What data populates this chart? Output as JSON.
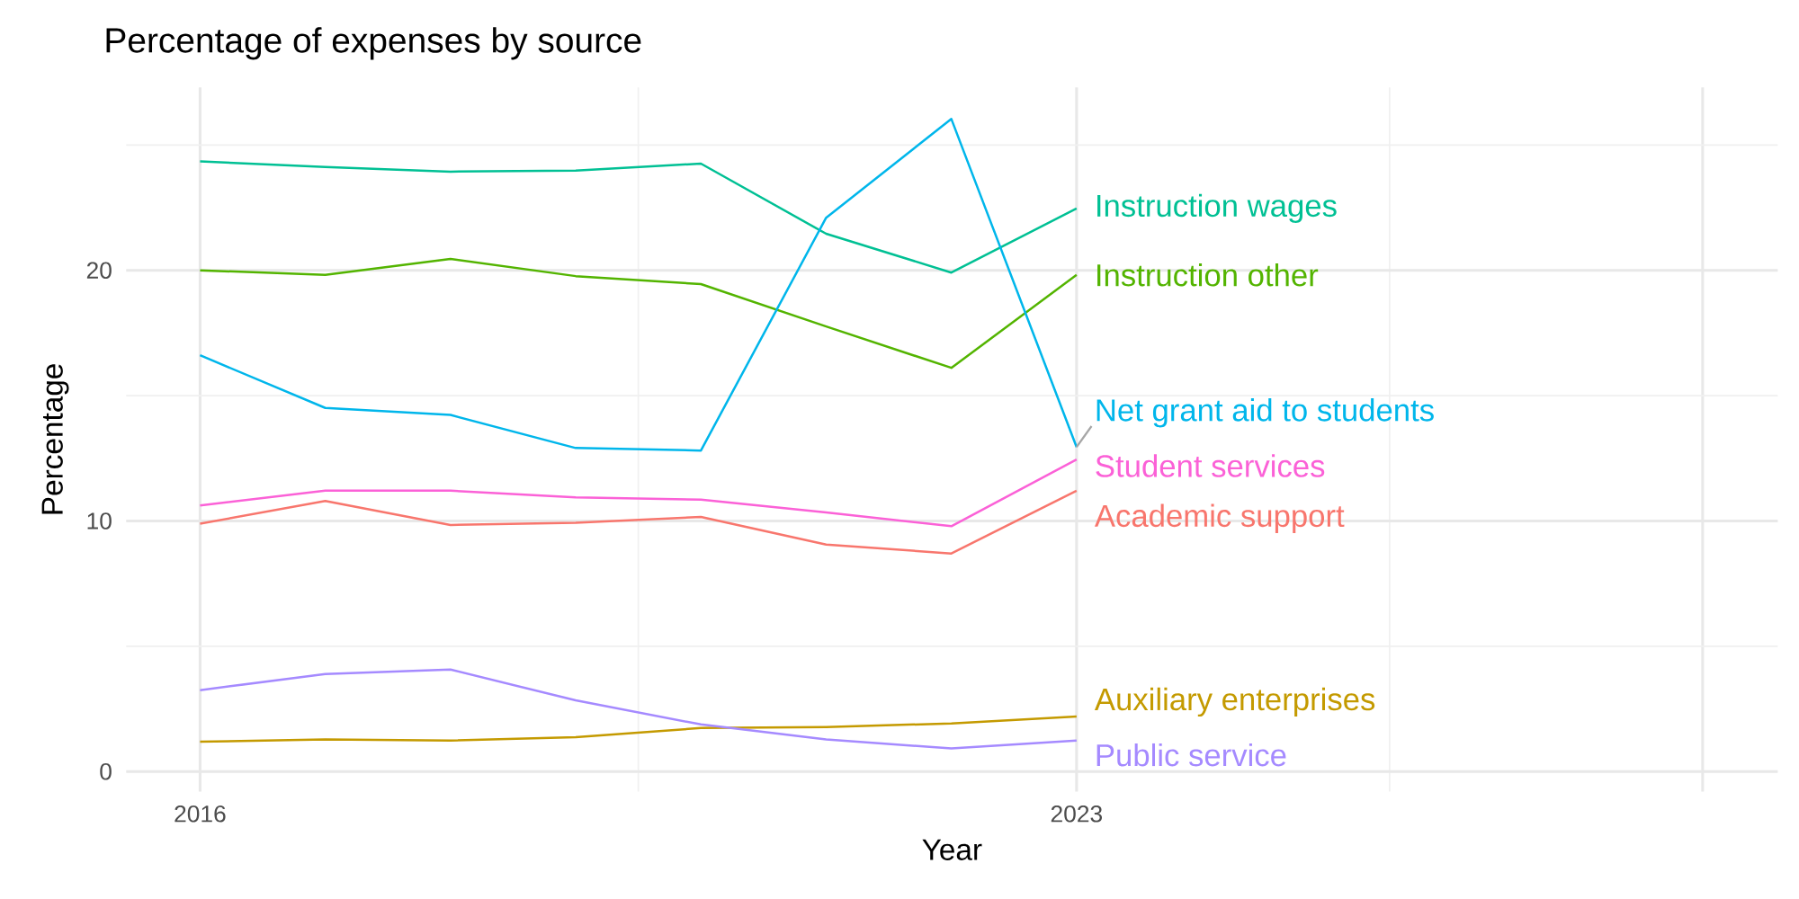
{
  "chart_data": {
    "type": "line",
    "title": "Percentage of expenses by source",
    "xlabel": "Year",
    "ylabel": "Percentage",
    "x": [
      2016,
      2017,
      2018,
      2019,
      2020,
      2021,
      2022,
      2023
    ],
    "xlim": [
      2015.41,
      2028.6
    ],
    "xticks": [
      2016,
      2023,
      {
        "value": 2028,
        "label": null
      }
    ],
    "ylim": [
      -0.8,
      27.3
    ],
    "yticks": [
      0,
      10,
      20
    ],
    "grid": true,
    "legend": false,
    "series": [
      {
        "name": "Academic support",
        "color": "#F8766D",
        "values": [
          9.89,
          10.8,
          9.84,
          9.93,
          10.16,
          9.06,
          8.7,
          11.21
        ]
      },
      {
        "name": "Auxiliary enterprises",
        "color": "#C49A00",
        "values": [
          1.19,
          1.28,
          1.24,
          1.37,
          1.74,
          1.78,
          1.92,
          2.2
        ]
      },
      {
        "name": "Instruction other",
        "color": "#53B400",
        "values": [
          20.0,
          19.82,
          20.46,
          19.77,
          19.45,
          17.76,
          16.11,
          19.82
        ]
      },
      {
        "name": "Instruction wages",
        "color": "#00C094",
        "values": [
          24.35,
          24.12,
          23.94,
          23.98,
          24.26,
          21.46,
          19.91,
          22.47
        ]
      },
      {
        "name": "Net grant aid to students",
        "color": "#00B6EB",
        "values": [
          16.61,
          14.51,
          14.23,
          12.91,
          12.81,
          22.1,
          26.04,
          12.95
        ]
      },
      {
        "name": "Public service",
        "color": "#A58AFF",
        "values": [
          3.25,
          3.89,
          4.07,
          2.84,
          1.88,
          1.28,
          0.92,
          1.24
        ]
      },
      {
        "name": "Student services",
        "color": "#FB61D7",
        "values": [
          10.62,
          11.21,
          11.21,
          10.94,
          10.85,
          10.34,
          9.79,
          12.45
        ]
      }
    ]
  }
}
